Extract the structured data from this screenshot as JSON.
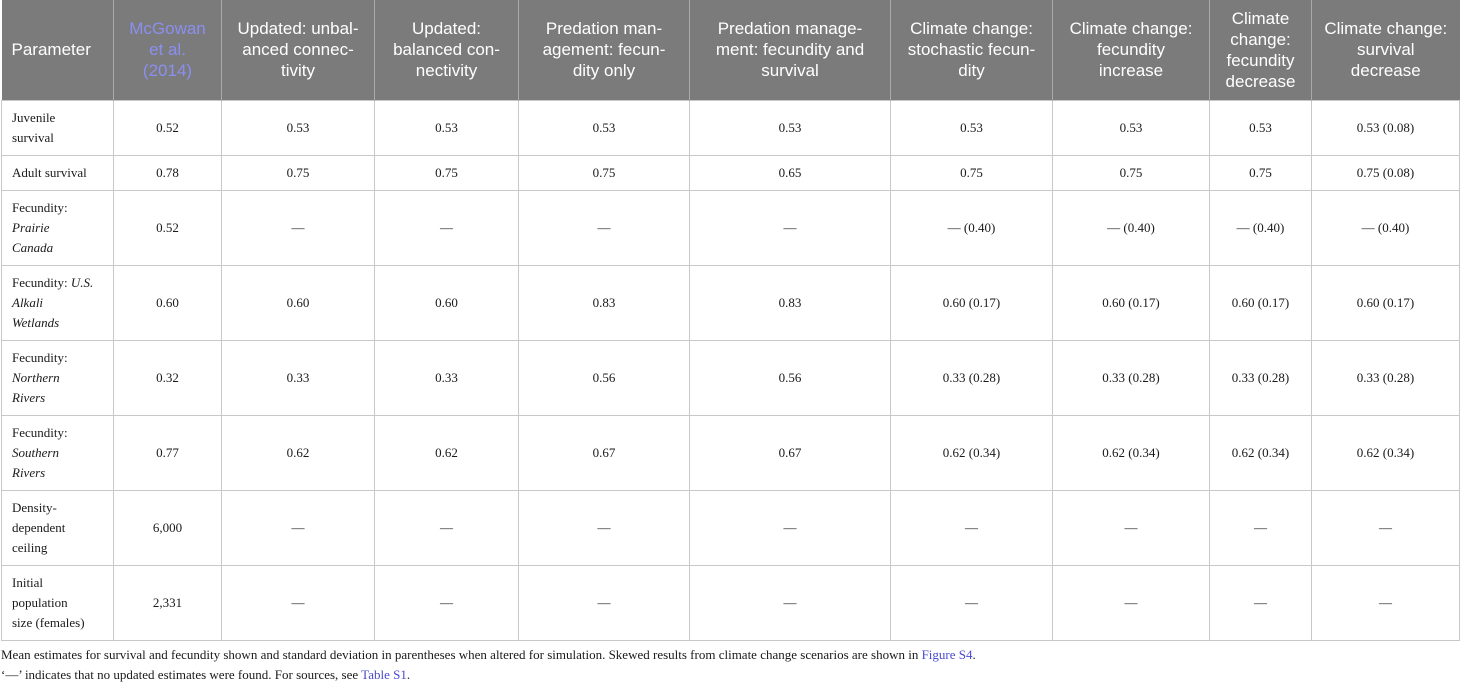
{
  "table": {
    "headers": [
      "Parameter",
      "McGowan et al. (2014)",
      "Updated: unbalanced connectivity",
      "Updated: balanced connectivity",
      "Predation management: fecundity only",
      "Predation management: fecundity and survival",
      "Climate change: stochastic fecundity",
      "Climate change: fecundity increase",
      "Climate change: fecundity decrease",
      "Climate change: survival decrease"
    ],
    "header_lines": [
      [
        "Parameter"
      ],
      [
        "McGowan",
        "et al.",
        "(2014)"
      ],
      [
        "Updated: unbal-",
        "anced connec-",
        "tivity"
      ],
      [
        "Updated:",
        "balanced con-",
        "nectivity"
      ],
      [
        "Predation man-",
        "agement: fecun-",
        "dity only"
      ],
      [
        "Predation manage-",
        "ment: fecundity and",
        "survival"
      ],
      [
        "Climate change:",
        "stochastic fecun-",
        "dity"
      ],
      [
        "Climate change:",
        "fecundity",
        "increase"
      ],
      [
        "Climate",
        "change:",
        "fecundity",
        "decrease"
      ],
      [
        "Climate change:",
        "survival",
        "decrease"
      ]
    ],
    "rows": [
      {
        "param_lines": [
          [
            "Juvenile",
            ""
          ],
          [
            "survival",
            ""
          ]
        ],
        "values": [
          "0.52",
          "0.53",
          "0.53",
          "0.53",
          "0.53",
          "0.53",
          "0.53",
          "0.53",
          "0.53 (0.08)"
        ]
      },
      {
        "param_lines": [
          [
            "Adult survival",
            ""
          ]
        ],
        "values": [
          "0.78",
          "0.75",
          "0.75",
          "0.75",
          "0.65",
          "0.75",
          "0.75",
          "0.75",
          "0.75 (0.08)"
        ]
      },
      {
        "param_lines": [
          [
            "Fecundity:",
            ""
          ],
          [
            "",
            "Prairie"
          ],
          [
            "",
            "Canada"
          ]
        ],
        "values": [
          "0.52",
          "—",
          "—",
          "—",
          "—",
          "— (0.40)",
          "— (0.40)",
          "— (0.40)",
          "— (0.40)"
        ]
      },
      {
        "param_lines": [
          [
            "Fecundity: ",
            "U.S."
          ],
          [
            "",
            "Alkali"
          ],
          [
            "",
            "Wetlands"
          ]
        ],
        "values": [
          "0.60",
          "0.60",
          "0.60",
          "0.83",
          "0.83",
          "0.60 (0.17)",
          "0.60 (0.17)",
          "0.60 (0.17)",
          "0.60 (0.17)"
        ]
      },
      {
        "param_lines": [
          [
            "Fecundity:",
            ""
          ],
          [
            "",
            "Northern"
          ],
          [
            "",
            "Rivers"
          ]
        ],
        "values": [
          "0.32",
          "0.33",
          "0.33",
          "0.56",
          "0.56",
          "0.33 (0.28)",
          "0.33 (0.28)",
          "0.33 (0.28)",
          "0.33 (0.28)"
        ]
      },
      {
        "param_lines": [
          [
            "Fecundity:",
            ""
          ],
          [
            "",
            "Southern"
          ],
          [
            "",
            "Rivers"
          ]
        ],
        "values": [
          "0.77",
          "0.62",
          "0.62",
          "0.67",
          "0.67",
          "0.62 (0.34)",
          "0.62 (0.34)",
          "0.62 (0.34)",
          "0.62 (0.34)"
        ]
      },
      {
        "param_lines": [
          [
            "Density-",
            ""
          ],
          [
            "dependent",
            ""
          ],
          [
            "ceiling",
            ""
          ]
        ],
        "values": [
          "6,000",
          "—",
          "—",
          "—",
          "—",
          "—",
          "—",
          "—",
          "—"
        ]
      },
      {
        "param_lines": [
          [
            "Initial",
            ""
          ],
          [
            "population",
            ""
          ],
          [
            "size (females)",
            ""
          ]
        ],
        "values": [
          "2,331",
          "—",
          "—",
          "—",
          "—",
          "—",
          "—",
          "—",
          "—"
        ]
      }
    ]
  },
  "notes": {
    "note1_text": "Mean estimates for survival and fecundity shown and standard deviation in parentheses when altered for simulation. Skewed results from climate change scenarios are shown in ",
    "note1_link": "Figure S4",
    "note1_end": ".",
    "note2_text": "‘—’ indicates that no updated estimates were found. For sources, see ",
    "note2_link": "Table S1",
    "note2_end": "."
  },
  "colors": {
    "header_bg": "#7b7b7b",
    "header_text": "#ffffff",
    "reference_link": "#8b8ff0",
    "note_link": "#4a4ad0",
    "grid": "#c8c8c8"
  }
}
